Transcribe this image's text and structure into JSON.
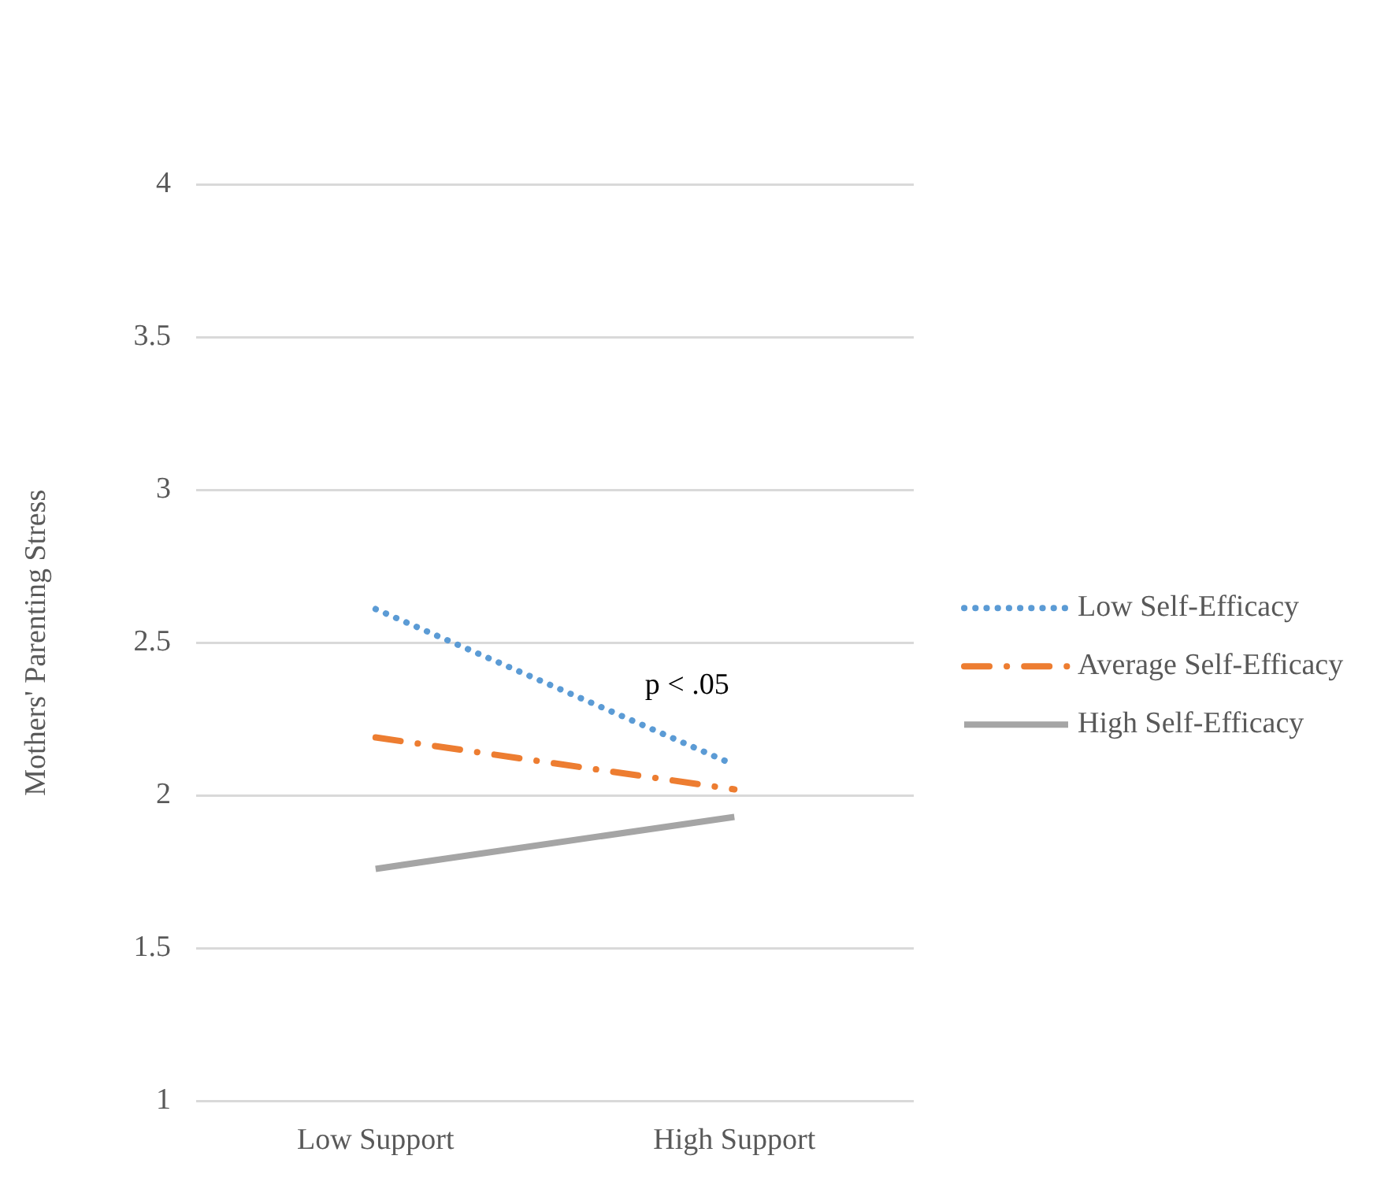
{
  "chart_data": {
    "type": "line",
    "ylabel": "Mothers' Parenting Stress",
    "categories": [
      "Low Support",
      "High Support"
    ],
    "series": [
      {
        "name": "Low Self-Efficacy",
        "color": "#5b9bd5",
        "values": [
          2.61,
          2.1
        ],
        "line_style": "dotted"
      },
      {
        "name": "Average Self-Efficacy",
        "color": "#ed7d31",
        "values": [
          2.19,
          2.02
        ],
        "line_style": "dashed"
      },
      {
        "name": "High Self-Efficacy",
        "color": "#a5a5a5",
        "values": [
          1.76,
          1.93
        ],
        "line_style": "solid"
      }
    ],
    "ylim": [
      1,
      4
    ],
    "yticks": [
      1,
      1.5,
      2,
      2.5,
      3,
      3.5,
      4
    ],
    "grid": "y",
    "legend": "right",
    "marker": "none",
    "annotations": [
      "p < .05"
    ]
  }
}
